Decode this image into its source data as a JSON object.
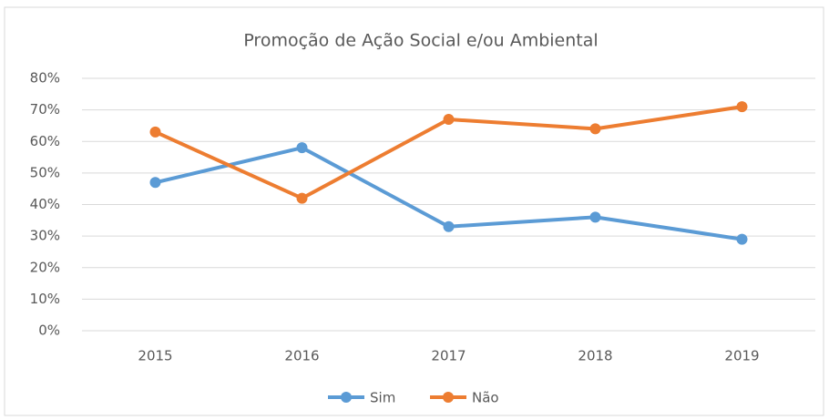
{
  "chart_data": {
    "type": "line",
    "title": "Promoção de Ação Social e/ou Ambiental",
    "categories": [
      "2015",
      "2016",
      "2017",
      "2018",
      "2019"
    ],
    "series": [
      {
        "name": "Sim",
        "color": "#5b9bd5",
        "values": [
          47,
          58,
          33,
          36,
          29
        ]
      },
      {
        "name": "Não",
        "color": "#ed7d31",
        "values": [
          63,
          42,
          67,
          64,
          71
        ]
      }
    ],
    "ylim": [
      0,
      80
    ],
    "yticks": [
      {
        "value": 0,
        "label": "0%"
      },
      {
        "value": 10,
        "label": "10%"
      },
      {
        "value": 20,
        "label": "20%"
      },
      {
        "value": 30,
        "label": "30%"
      },
      {
        "value": 40,
        "label": "40%"
      },
      {
        "value": 50,
        "label": "50%"
      },
      {
        "value": 60,
        "label": "60%"
      },
      {
        "value": 70,
        "label": "70%"
      },
      {
        "value": 80,
        "label": "80%"
      }
    ],
    "grid": true,
    "legend": "bottom"
  }
}
